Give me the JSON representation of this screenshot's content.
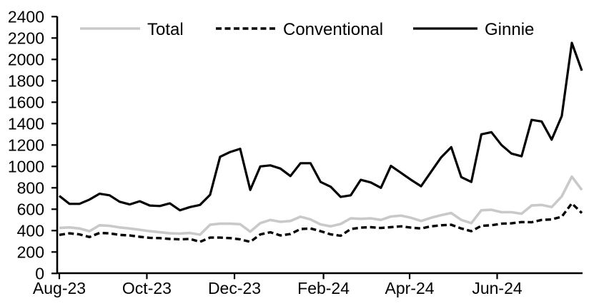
{
  "chart_data": {
    "type": "line",
    "title": "",
    "x_axis": {
      "label": "",
      "tick_labels": [
        "Aug-23",
        "Oct-23",
        "Dec-23",
        "Feb-24",
        "Apr-24",
        "Jun-24"
      ],
      "tick_week_positions": [
        0,
        8.71,
        17.43,
        26.29,
        34.86,
        43.57
      ],
      "frequency": "weekly",
      "total_weeks": 53
    },
    "y_axis": {
      "label": "",
      "min": 0,
      "max": 2400,
      "step": 200,
      "tick_labels": [
        "0",
        "200",
        "400",
        "600",
        "800",
        "1000",
        "1200",
        "1400",
        "1600",
        "1800",
        "2000",
        "2200",
        "2400"
      ]
    },
    "legend": {
      "position": "top",
      "entries": [
        "Total",
        "Conventional",
        "Ginnie"
      ]
    },
    "grid": "off",
    "series": [
      {
        "name": "Total",
        "color": "#c9c9c9",
        "style": "solid",
        "values": [
          425,
          430,
          420,
          395,
          450,
          445,
          430,
          420,
          408,
          395,
          385,
          375,
          372,
          378,
          362,
          455,
          465,
          465,
          460,
          390,
          470,
          500,
          482,
          490,
          530,
          505,
          458,
          440,
          462,
          515,
          510,
          515,
          500,
          532,
          540,
          520,
          490,
          520,
          545,
          565,
          500,
          470,
          590,
          595,
          572,
          572,
          558,
          635,
          640,
          620,
          720,
          905,
          780
        ]
      },
      {
        "name": "Conventional",
        "color": "#000000",
        "style": "dashed",
        "values": [
          360,
          375,
          365,
          340,
          378,
          375,
          360,
          355,
          342,
          333,
          330,
          322,
          318,
          322,
          295,
          335,
          335,
          330,
          318,
          295,
          365,
          385,
          355,
          368,
          415,
          420,
          395,
          365,
          352,
          415,
          428,
          432,
          425,
          432,
          440,
          428,
          420,
          440,
          450,
          455,
          420,
          395,
          445,
          450,
          465,
          468,
          480,
          478,
          500,
          505,
          530,
          655,
          565
        ]
      },
      {
        "name": "Ginnie",
        "color": "#000000",
        "style": "solid",
        "values": [
          725,
          650,
          650,
          690,
          745,
          730,
          670,
          645,
          675,
          635,
          630,
          655,
          590,
          620,
          640,
          735,
          1090,
          1135,
          1165,
          780,
          1000,
          1010,
          980,
          910,
          1030,
          1030,
          855,
          810,
          715,
          730,
          875,
          850,
          800,
          1005,
          940,
          875,
          815,
          950,
          1085,
          1180,
          900,
          855,
          1300,
          1320,
          1200,
          1120,
          1095,
          1435,
          1420,
          1250,
          1470,
          2155,
          1895
        ]
      }
    ]
  }
}
